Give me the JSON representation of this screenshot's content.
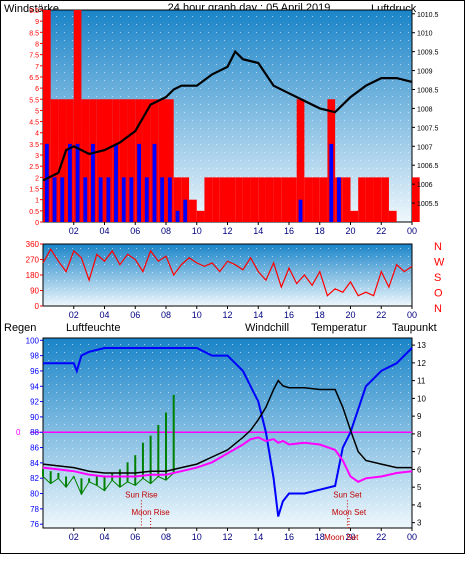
{
  "header": {
    "left_label": "Windstärke",
    "title": "24 hour graph day : 05 April 2019",
    "right_label": "Luftdruck"
  },
  "colors": {
    "plot_top": "#1a84c8",
    "plot_bottom": "#eef7fc",
    "frame": "#000000",
    "red": "#ff0000",
    "blue": "#0000ff",
    "magenta": "#ff00ff",
    "green": "#008000",
    "title": "#0000c0"
  },
  "chart_data": [
    {
      "type": "bar",
      "name": "wind-pressure",
      "x_ticks": [
        "02",
        "04",
        "06",
        "08",
        "10",
        "12",
        "14",
        "16",
        "18",
        "20",
        "22",
        "00"
      ],
      "y_left_ticks": [
        "0",
        "0.5",
        "1",
        "1.5",
        "2",
        "2.5",
        "3",
        "3.5",
        "4",
        "4.5",
        "5",
        "5.5",
        "6",
        "6.5",
        "7",
        "7.5",
        "8",
        "8.5",
        "9",
        "9.5"
      ],
      "y_left_range": [
        0,
        9.5
      ],
      "y_right_ticks": [
        "1005.5",
        "1006",
        "1006.5",
        "1007",
        "1007.5",
        "1008",
        "1008.5",
        "1009",
        "1009.5",
        "1010",
        "1010.5"
      ],
      "y_right_range": [
        1005.0,
        1010.6
      ],
      "pressure": {
        "x": [
          0,
          0.5,
          1,
          1.5,
          2,
          3,
          4,
          5,
          6,
          7,
          8,
          8.5,
          9,
          10,
          11,
          12,
          12.5,
          13,
          14,
          15,
          16,
          17,
          18,
          19,
          20,
          21,
          22,
          23,
          24
        ],
        "y": [
          1006.1,
          1006.2,
          1006.3,
          1006.9,
          1007.0,
          1006.8,
          1006.9,
          1007.1,
          1007.4,
          1008.1,
          1008.3,
          1008.5,
          1008.6,
          1008.6,
          1008.9,
          1009.1,
          1009.5,
          1009.3,
          1009.2,
          1008.6,
          1008.4,
          1008.2,
          1008.0,
          1007.9,
          1008.3,
          1008.6,
          1008.8,
          1008.8,
          1008.7
        ]
      },
      "gust": {
        "x": [
          0,
          0.5,
          1,
          1.5,
          2,
          2.5,
          3,
          3.5,
          4,
          4.5,
          5,
          5.5,
          6,
          6.5,
          7,
          7.5,
          8,
          8.5,
          9,
          9.5,
          10,
          10.5,
          11,
          11.5,
          12,
          12.5,
          13,
          13.5,
          14,
          14.5,
          15,
          15.5,
          16,
          16.5,
          17,
          17.5,
          18,
          18.5,
          19,
          19.5,
          20,
          20.5,
          21,
          21.5,
          22,
          22.5,
          23,
          23.5,
          24
        ],
        "y": [
          9.5,
          5.5,
          5.5,
          5.5,
          9.5,
          5.5,
          5.5,
          5.5,
          5.5,
          5.5,
          5.5,
          5.5,
          5.5,
          5.5,
          5.5,
          5.5,
          5.5,
          2,
          2,
          1,
          0.5,
          2,
          2,
          2,
          2,
          2,
          2,
          2,
          2,
          2,
          2,
          2,
          2,
          5.5,
          2,
          2,
          2,
          5.5,
          2,
          2,
          0.5,
          2,
          2,
          2,
          2,
          0.5,
          0,
          0,
          2
        ]
      },
      "average": {
        "x": [
          0,
          0.5,
          1,
          1.5,
          2,
          2.5,
          3,
          3.5,
          4,
          4.5,
          5,
          5.5,
          6,
          6.5,
          7,
          7.5,
          8,
          8.5,
          9,
          9.5,
          10,
          10.5,
          11,
          11.5,
          12,
          12.5,
          13,
          13.5,
          14,
          14.5,
          15,
          15.5,
          16,
          16.5,
          17,
          17.5,
          18,
          18.5,
          19,
          19.5,
          20,
          20.5,
          21,
          21.5,
          22,
          22.5,
          23,
          23.5,
          24
        ],
        "y": [
          3.5,
          2,
          2,
          3.5,
          3.5,
          2,
          3.5,
          2,
          2,
          3.5,
          2,
          2,
          3.5,
          2,
          3.5,
          2,
          2,
          0.5,
          1,
          0,
          0,
          0,
          0,
          0,
          0,
          0,
          0,
          0,
          0,
          0,
          0,
          0,
          0,
          1,
          0,
          0,
          0,
          3.5,
          2,
          0,
          0,
          0,
          0,
          0,
          0,
          0,
          0,
          0,
          0
        ]
      }
    },
    {
      "type": "line",
      "name": "wind-direction",
      "x_ticks": [
        "02",
        "04",
        "06",
        "08",
        "10",
        "12",
        "14",
        "16",
        "18",
        "20",
        "22",
        "00"
      ],
      "y_left_ticks": [
        "0",
        "90",
        "180",
        "270",
        "360"
      ],
      "y_right_ticks": [
        "N",
        "W",
        "S",
        "O",
        "N"
      ],
      "y_range": [
        0,
        360
      ],
      "direction": {
        "x": [
          0,
          0.5,
          1,
          1.5,
          2,
          2.5,
          3,
          3.5,
          4,
          4.5,
          5,
          5.5,
          6,
          6.5,
          7,
          7.5,
          8,
          8.5,
          9,
          9.5,
          10,
          10.5,
          11,
          11.5,
          12,
          12.5,
          13,
          13.5,
          14,
          14.5,
          15,
          15.5,
          16,
          16.5,
          17,
          17.5,
          18,
          18.5,
          19,
          19.5,
          20,
          20.5,
          21,
          21.5,
          22,
          22.5,
          23,
          23.5,
          24
        ],
        "y": [
          250,
          330,
          260,
          200,
          320,
          280,
          150,
          300,
          260,
          320,
          240,
          300,
          270,
          200,
          320,
          260,
          290,
          180,
          240,
          280,
          250,
          230,
          250,
          200,
          260,
          240,
          210,
          280,
          200,
          150,
          250,
          110,
          220,
          130,
          180,
          120,
          200,
          60,
          100,
          80,
          140,
          60,
          80,
          60,
          200,
          110,
          240,
          200,
          230
        ]
      }
    },
    {
      "type": "line",
      "name": "humidity-temperature",
      "labels": {
        "regen": "Regen",
        "luftfeuchte": "Luftfeuchte",
        "windchill": "Windchill",
        "temperatur": "Temperatur",
        "taupunkt": "Taupunkt"
      },
      "rain_value_label": "0",
      "x_ticks": [
        "02",
        "04",
        "06",
        "08",
        "10",
        "12",
        "14",
        "16",
        "18",
        "20",
        "22",
        "00"
      ],
      "y_left_ticks": [
        "76",
        "78",
        "80",
        "82",
        "84",
        "86",
        "88",
        "90",
        "92",
        "94",
        "96",
        "98",
        "100"
      ],
      "y_left_range": [
        75.5,
        100.3
      ],
      "y_right_ticks": [
        "3",
        "4",
        "5",
        "6",
        "7",
        "8",
        "9",
        "10",
        "11",
        "12",
        "13"
      ],
      "y_right_range": [
        2.7,
        13.4
      ],
      "rain_level": 88,
      "events": [
        {
          "label": "Sun Rise",
          "x": 6.4,
          "value": 79.5
        },
        {
          "label": "Moon Rise",
          "x": 7.0,
          "value": 77.2
        },
        {
          "label": "Sun Set",
          "x": 19.8,
          "value": 79.5
        },
        {
          "label": "Moon Set",
          "x": 19.9,
          "value": 77.2
        }
      ],
      "x_tick_overlay": "Moon Set",
      "humidity": {
        "x": [
          0,
          1,
          2,
          2.2,
          2.5,
          3,
          4,
          5,
          6,
          7,
          8,
          9,
          10,
          11,
          12,
          13,
          13.5,
          14,
          14.5,
          15,
          15.3,
          15.6,
          16,
          17,
          18,
          19,
          19.5,
          20,
          20.5,
          21,
          22,
          23,
          23.5,
          24
        ],
        "y": [
          97,
          97,
          97,
          96,
          98,
          98.5,
          99,
          99,
          99,
          99,
          99,
          99,
          99,
          98,
          98,
          96,
          94,
          92,
          88,
          82,
          77,
          79,
          80,
          80,
          80.5,
          81,
          86,
          88,
          91,
          94,
          96,
          97,
          98,
          99
        ]
      },
      "temperature": {
        "x": [
          0,
          1,
          2,
          3,
          4,
          5,
          6,
          7,
          8,
          9,
          10,
          11,
          12,
          13,
          13.5,
          14,
          14.5,
          15,
          15.3,
          15.6,
          16,
          17,
          18,
          19,
          19.5,
          20,
          20.5,
          21,
          22,
          23,
          24
        ],
        "y": [
          6.3,
          6.2,
          6.1,
          5.9,
          5.8,
          5.8,
          5.8,
          5.9,
          5.9,
          6.1,
          6.3,
          6.7,
          7.1,
          7.8,
          8.2,
          8.8,
          9.5,
          10.5,
          11.0,
          10.7,
          10.6,
          10.6,
          10.5,
          10.5,
          9.5,
          8.2,
          7.0,
          6.5,
          6.3,
          6.1,
          6.1
        ]
      },
      "dewpoint": {
        "x": [
          0,
          1,
          2,
          3,
          4,
          5,
          6,
          7,
          8,
          9,
          10,
          11,
          12,
          13,
          13.5,
          14,
          14.5,
          15,
          15.3,
          15.6,
          16,
          17,
          18,
          19,
          19.5,
          20,
          20.5,
          21,
          22,
          23,
          24
        ],
        "y": [
          6.1,
          6.0,
          5.9,
          5.7,
          5.6,
          5.6,
          5.6,
          5.7,
          5.7,
          5.9,
          6.1,
          6.4,
          6.9,
          7.4,
          7.7,
          7.8,
          7.6,
          7.7,
          7.5,
          7.6,
          7.4,
          7.5,
          7.4,
          7.1,
          6.5,
          5.6,
          5.3,
          5.5,
          5.6,
          5.8,
          5.9
        ]
      },
      "windchill": {
        "x": [
          0,
          0.5,
          1,
          1.5,
          2,
          2.5,
          3,
          3.5,
          4,
          4.5,
          5,
          5.5,
          6,
          6.5,
          7,
          7.5,
          8,
          8.5
        ],
        "y": [
          5.6,
          5.2,
          5.5,
          5.0,
          5.6,
          4.6,
          5.3,
          5.1,
          4.8,
          5.4,
          5.0,
          5.3,
          5.1,
          5.5,
          5.2,
          5.6,
          5.4,
          5.8
        ]
      }
    }
  ]
}
